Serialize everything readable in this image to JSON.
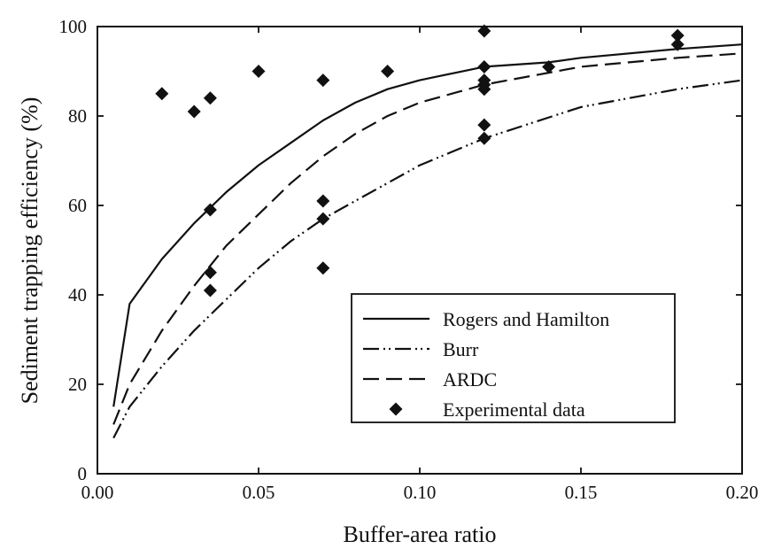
{
  "chart_data": {
    "type": "line",
    "xlabel": "Buffer-area ratio",
    "ylabel": "Sediment trapping efficiency (%)",
    "xlim": [
      0,
      0.2
    ],
    "ylim": [
      0,
      100
    ],
    "xticks": [
      0,
      0.05,
      0.1,
      0.15,
      0.2
    ],
    "xtick_labels": [
      "0.00",
      "0.05",
      "0.10",
      "0.15",
      "0.20"
    ],
    "yticks": [
      0,
      20,
      40,
      60,
      80,
      100
    ],
    "ytick_labels": [
      "0",
      "20",
      "40",
      "60",
      "80",
      "100"
    ],
    "grid": false,
    "legend_position": "bottom-right",
    "series": [
      {
        "name": "Rogers and Hamilton",
        "style": "solid",
        "x": [
          0.005,
          0.01,
          0.02,
          0.03,
          0.04,
          0.05,
          0.06,
          0.07,
          0.08,
          0.09,
          0.1,
          0.12,
          0.14,
          0.15,
          0.18,
          0.2
        ],
        "y": [
          15,
          38,
          48,
          56,
          63,
          69,
          74,
          79,
          83,
          86,
          88,
          91,
          92,
          93,
          95,
          96
        ]
      },
      {
        "name": "Burr",
        "style": "dash-dot-dot",
        "x": [
          0.005,
          0.01,
          0.02,
          0.03,
          0.04,
          0.05,
          0.06,
          0.07,
          0.08,
          0.09,
          0.1,
          0.12,
          0.15,
          0.18,
          0.2
        ],
        "y": [
          8,
          15,
          24,
          32,
          39,
          46,
          52,
          57,
          61,
          65,
          69,
          75,
          82,
          86,
          88
        ]
      },
      {
        "name": "ARDC",
        "style": "dashed",
        "x": [
          0.005,
          0.01,
          0.02,
          0.03,
          0.04,
          0.05,
          0.06,
          0.07,
          0.08,
          0.09,
          0.1,
          0.12,
          0.15,
          0.18,
          0.2
        ],
        "y": [
          11,
          20,
          32,
          42,
          51,
          58,
          65,
          71,
          76,
          80,
          83,
          87,
          91,
          93,
          94
        ]
      },
      {
        "name": "Experimental data",
        "style": "diamond",
        "x": [
          0.02,
          0.03,
          0.035,
          0.035,
          0.035,
          0.035,
          0.05,
          0.07,
          0.07,
          0.07,
          0.07,
          0.09,
          0.12,
          0.12,
          0.12,
          0.12,
          0.12,
          0.12,
          0.12,
          0.14,
          0.18,
          0.18
        ],
        "y": [
          85,
          81,
          84,
          59,
          45,
          41,
          90,
          88,
          61,
          57,
          46,
          90,
          99,
          91,
          87,
          86,
          78,
          75,
          88,
          91,
          98,
          96
        ]
      }
    ]
  }
}
